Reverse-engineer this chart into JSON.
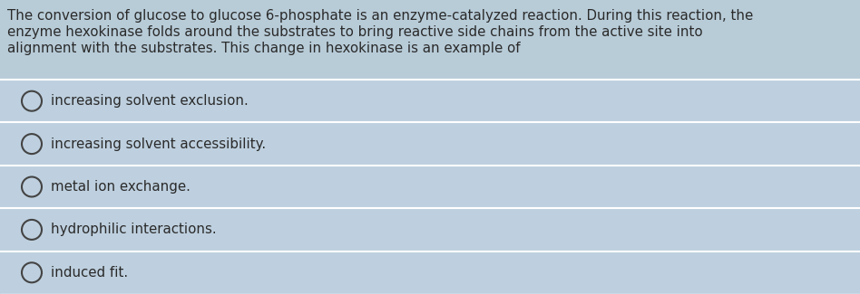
{
  "question_text_lines": [
    "The conversion of glucose to glucose 6-phosphate is an enzyme-catalyzed reaction. During this reaction, the",
    "enzyme hexokinase folds around the substrates to bring reactive side chains from the active site into",
    "alignment with the substrates. This change in hexokinase is an example of"
  ],
  "options": [
    "increasing solvent exclusion.",
    "increasing solvent accessibility.",
    "metal ion exchange.",
    "hydrophilic interactions.",
    "induced fit."
  ],
  "bg_question": "#b8ccd8",
  "bg_option": "#bed0df",
  "bg_separator": "#dce8f0",
  "text_color": "#2a2a2a",
  "circle_color": "#444444",
  "question_fontsize": 10.8,
  "option_fontsize": 10.8,
  "fig_width": 9.48,
  "fig_height": 3.25,
  "dpi": 100
}
